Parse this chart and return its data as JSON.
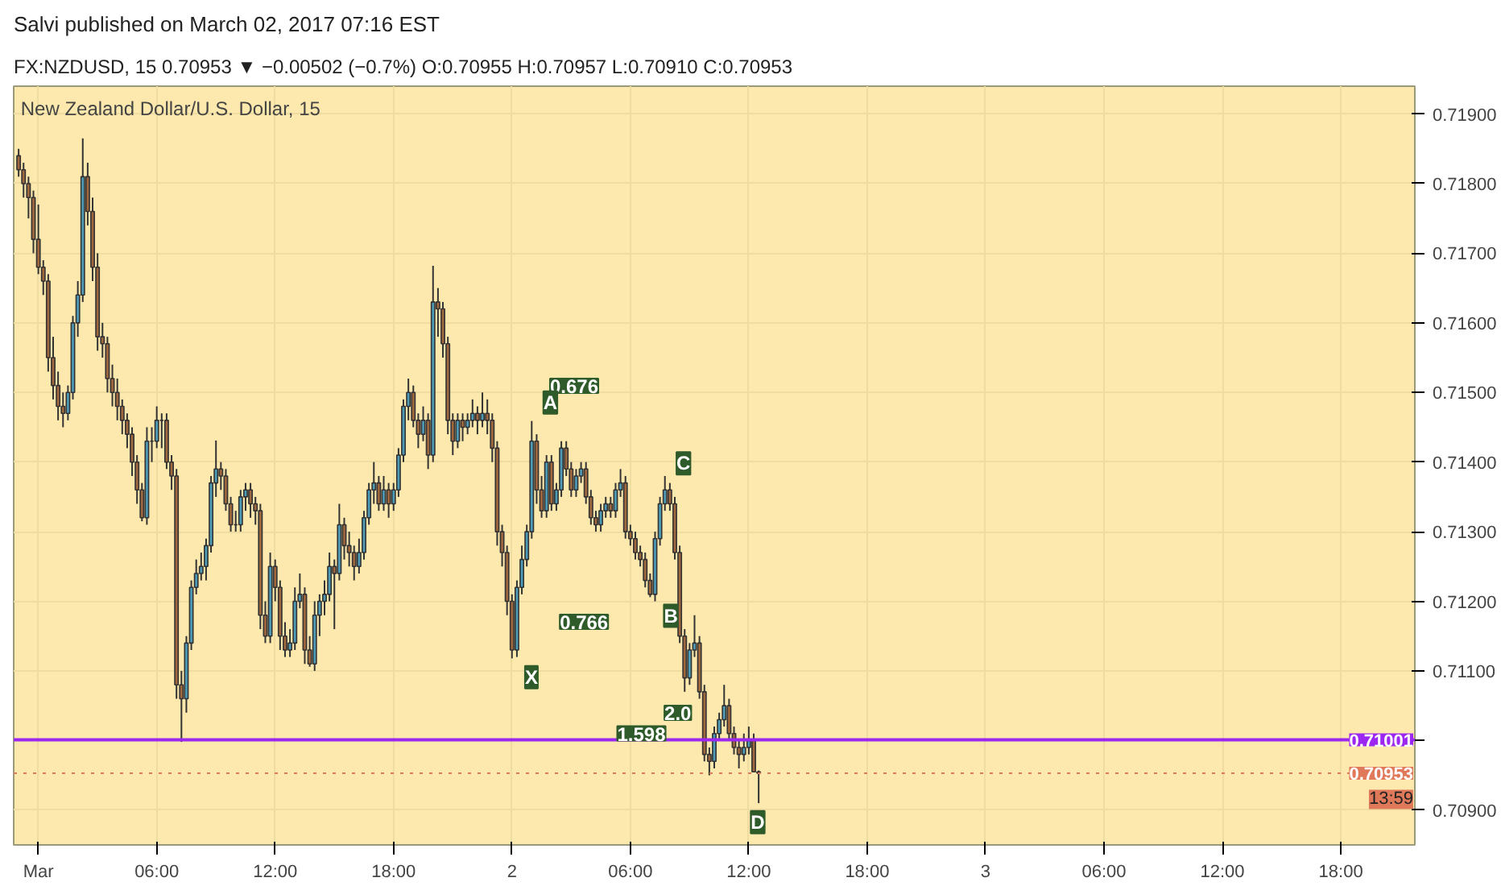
{
  "chart_data": {
    "type": "candlestick",
    "title": "Salvi published on March 02, 2017 07:16 EST",
    "subtitle": "FX:NZDUSD, 15 0.70953 ▼ −0.00502 (−0.7%) O:0.70955 H:0.70957 L:0.70910 C:0.70953",
    "annotations": [
      "New Zealand Dollar/U.S. Dollar, 15",
      "13:59",
      "0.676",
      "0.766",
      "1.598",
      "2.0",
      "X",
      "A",
      "B",
      "C",
      "D"
    ],
    "x": [
      "2017-02-28T23:00",
      "2017-02-28T23:15",
      "2017-02-28T23:30",
      "2017-02-28T23:45",
      "2017-03-01T00:00",
      "2017-03-01T00:15",
      "2017-03-01T00:30",
      "2017-03-01T00:45",
      "2017-03-01T01:00",
      "2017-03-01T01:15",
      "2017-03-01T01:30",
      "2017-03-01T01:45",
      "2017-03-01T02:00",
      "2017-03-01T02:15",
      "2017-03-01T02:30",
      "2017-03-01T02:45",
      "2017-03-01T03:00",
      "2017-03-01T03:15",
      "2017-03-01T03:30",
      "2017-03-01T03:45",
      "2017-03-01T04:00",
      "2017-03-01T04:15",
      "2017-03-01T04:30",
      "2017-03-01T04:45",
      "2017-03-01T05:00",
      "2017-03-01T05:15",
      "2017-03-01T05:30",
      "2017-03-01T05:45",
      "2017-03-01T06:00",
      "2017-03-01T06:15",
      "2017-03-01T06:30",
      "2017-03-01T06:45",
      "2017-03-01T07:00",
      "2017-03-01T07:15",
      "2017-03-01T07:30",
      "2017-03-01T07:45",
      "2017-03-01T08:00",
      "2017-03-01T08:15",
      "2017-03-01T08:30",
      "2017-03-01T08:45",
      "2017-03-01T09:00",
      "2017-03-01T09:15",
      "2017-03-01T09:30",
      "2017-03-01T09:45",
      "2017-03-01T10:00",
      "2017-03-01T10:15",
      "2017-03-01T10:30",
      "2017-03-01T10:45",
      "2017-03-01T11:00",
      "2017-03-01T11:15",
      "2017-03-01T11:30",
      "2017-03-01T11:45",
      "2017-03-01T12:00",
      "2017-03-01T12:15",
      "2017-03-01T12:30",
      "2017-03-01T12:45",
      "2017-03-01T13:00",
      "2017-03-01T13:15",
      "2017-03-01T13:30",
      "2017-03-01T13:45",
      "2017-03-01T14:00",
      "2017-03-01T14:15",
      "2017-03-01T14:30",
      "2017-03-01T14:45",
      "2017-03-01T15:00",
      "2017-03-01T15:15",
      "2017-03-01T15:30",
      "2017-03-01T15:45",
      "2017-03-01T16:00",
      "2017-03-01T16:15",
      "2017-03-01T16:30",
      "2017-03-01T16:45",
      "2017-03-01T17:00",
      "2017-03-01T17:15",
      "2017-03-01T17:30",
      "2017-03-01T17:45",
      "2017-03-01T18:00",
      "2017-03-01T18:15",
      "2017-03-01T18:30",
      "2017-03-01T18:45",
      "2017-03-01T19:00",
      "2017-03-01T19:15",
      "2017-03-01T19:30",
      "2017-03-01T19:45",
      "2017-03-01T20:00",
      "2017-03-01T20:15",
      "2017-03-01T20:30",
      "2017-03-01T20:45",
      "2017-03-01T21:00",
      "2017-03-01T21:15",
      "2017-03-01T21:30",
      "2017-03-01T21:45",
      "2017-03-01T22:00",
      "2017-03-01T22:15",
      "2017-03-01T22:30",
      "2017-03-01T22:45",
      "2017-03-01T23:00",
      "2017-03-01T23:15",
      "2017-03-01T23:30",
      "2017-03-01T23:45",
      "2017-03-02T00:00",
      "2017-03-02T00:15",
      "2017-03-02T00:30",
      "2017-03-02T00:45",
      "2017-03-02T01:00",
      "2017-03-02T01:15",
      "2017-03-02T01:30",
      "2017-03-02T01:45",
      "2017-03-02T02:00",
      "2017-03-02T02:15",
      "2017-03-02T02:30",
      "2017-03-02T02:45",
      "2017-03-02T03:00",
      "2017-03-02T03:15",
      "2017-03-02T03:30",
      "2017-03-02T03:45",
      "2017-03-02T04:00",
      "2017-03-02T04:15",
      "2017-03-02T04:30",
      "2017-03-02T04:45",
      "2017-03-02T05:00",
      "2017-03-02T05:15",
      "2017-03-02T05:30",
      "2017-03-02T05:45",
      "2017-03-02T06:00",
      "2017-03-02T06:15",
      "2017-03-02T06:30",
      "2017-03-02T06:45",
      "2017-03-02T07:00",
      "2017-03-02T07:15",
      "2017-03-02T07:30",
      "2017-03-02T07:45",
      "2017-03-02T08:00",
      "2017-03-02T08:15",
      "2017-03-02T08:30",
      "2017-03-02T08:45",
      "2017-03-02T09:00",
      "2017-03-02T09:15",
      "2017-03-02T09:30",
      "2017-03-02T09:45",
      "2017-03-02T10:00",
      "2017-03-02T10:15",
      "2017-03-02T10:30",
      "2017-03-02T10:45",
      "2017-03-02T11:00",
      "2017-03-02T11:15",
      "2017-03-02T11:30",
      "2017-03-02T11:45",
      "2017-03-02T12:00",
      "2017-03-02T12:15",
      "2017-03-02T12:30"
    ],
    "ohlc": [
      [
        0.7184,
        0.7185,
        0.7181,
        0.7182
      ],
      [
        0.7182,
        0.7183,
        0.7178,
        0.718
      ],
      [
        0.718,
        0.7181,
        0.7175,
        0.7178
      ],
      [
        0.7178,
        0.7179,
        0.717,
        0.7172
      ],
      [
        0.7172,
        0.7177,
        0.7167,
        0.7168
      ],
      [
        0.7168,
        0.7169,
        0.7164,
        0.7166
      ],
      [
        0.7166,
        0.7167,
        0.7153,
        0.7155
      ],
      [
        0.7155,
        0.7158,
        0.7149,
        0.7151
      ],
      [
        0.7151,
        0.7153,
        0.7146,
        0.7148
      ],
      [
        0.7148,
        0.715,
        0.7145,
        0.7147
      ],
      [
        0.7147,
        0.7151,
        0.7146,
        0.715
      ],
      [
        0.715,
        0.7161,
        0.7149,
        0.716
      ],
      [
        0.716,
        0.7166,
        0.7158,
        0.7164
      ],
      [
        0.7164,
        0.71865,
        0.7163,
        0.7181
      ],
      [
        0.7181,
        0.7183,
        0.7174,
        0.7176
      ],
      [
        0.7176,
        0.7178,
        0.7166,
        0.7168
      ],
      [
        0.7168,
        0.717,
        0.7156,
        0.7158
      ],
      [
        0.7158,
        0.716,
        0.7155,
        0.7157
      ],
      [
        0.7157,
        0.7158,
        0.715,
        0.7152
      ],
      [
        0.7152,
        0.7154,
        0.7148,
        0.715
      ],
      [
        0.715,
        0.7152,
        0.7146,
        0.7148
      ],
      [
        0.7148,
        0.7149,
        0.7144,
        0.7146
      ],
      [
        0.7146,
        0.7147,
        0.7142,
        0.7144
      ],
      [
        0.7144,
        0.7145,
        0.7138,
        0.714
      ],
      [
        0.714,
        0.7141,
        0.7134,
        0.7136
      ],
      [
        0.7136,
        0.7137,
        0.71315,
        0.7132
      ],
      [
        0.7132,
        0.7145,
        0.7131,
        0.7143
      ],
      [
        0.7143,
        0.7145,
        0.714,
        0.7143
      ],
      [
        0.7143,
        0.7148,
        0.7142,
        0.7146
      ],
      [
        0.7146,
        0.7147,
        0.7142,
        0.7146
      ],
      [
        0.7146,
        0.7147,
        0.7139,
        0.714
      ],
      [
        0.714,
        0.7141,
        0.7136,
        0.7138
      ],
      [
        0.7138,
        0.7139,
        0.7106,
        0.7108
      ],
      [
        0.7108,
        0.711,
        0.70998,
        0.7106
      ],
      [
        0.7106,
        0.7115,
        0.7104,
        0.7114
      ],
      [
        0.7114,
        0.7123,
        0.7113,
        0.7122
      ],
      [
        0.7122,
        0.7126,
        0.7121,
        0.7124
      ],
      [
        0.7124,
        0.7127,
        0.7123,
        0.7125
      ],
      [
        0.7125,
        0.7129,
        0.7123,
        0.7128
      ],
      [
        0.7128,
        0.7138,
        0.7127,
        0.7137
      ],
      [
        0.7137,
        0.71431,
        0.7135,
        0.7139
      ],
      [
        0.7139,
        0.714,
        0.7136,
        0.7138
      ],
      [
        0.7138,
        0.7139,
        0.7133,
        0.7134
      ],
      [
        0.7134,
        0.7135,
        0.713,
        0.7131
      ],
      [
        0.7131,
        0.7133,
        0.713,
        0.7131
      ],
      [
        0.7131,
        0.7136,
        0.713,
        0.7135
      ],
      [
        0.7135,
        0.7137,
        0.7133,
        0.7136
      ],
      [
        0.7136,
        0.7137,
        0.7132,
        0.7134
      ],
      [
        0.7134,
        0.7135,
        0.7131,
        0.7133
      ],
      [
        0.7133,
        0.7134,
        0.7116,
        0.7118
      ],
      [
        0.7118,
        0.712,
        0.7114,
        0.7115
      ],
      [
        0.7115,
        0.7127,
        0.7114,
        0.7125
      ],
      [
        0.7125,
        0.7126,
        0.712,
        0.7122
      ],
      [
        0.7122,
        0.7123,
        0.7113,
        0.7115
      ],
      [
        0.7115,
        0.7117,
        0.7112,
        0.7113
      ],
      [
        0.7113,
        0.7116,
        0.7112,
        0.7114
      ],
      [
        0.7114,
        0.7122,
        0.7113,
        0.712
      ],
      [
        0.712,
        0.7124,
        0.7119,
        0.7121
      ],
      [
        0.7121,
        0.7122,
        0.7111,
        0.7113
      ],
      [
        0.7113,
        0.7115,
        0.71106,
        0.7111
      ],
      [
        0.7111,
        0.712,
        0.711,
        0.7118
      ],
      [
        0.7118,
        0.7121,
        0.7115,
        0.712
      ],
      [
        0.712,
        0.7123,
        0.7118,
        0.7121
      ],
      [
        0.7121,
        0.7127,
        0.712,
        0.7125
      ],
      [
        0.7125,
        0.7126,
        0.7116,
        0.7124
      ],
      [
        0.7124,
        0.7134,
        0.7123,
        0.7131
      ],
      [
        0.7131,
        0.7132,
        0.7126,
        0.7128
      ],
      [
        0.7128,
        0.713,
        0.7125,
        0.7127
      ],
      [
        0.7127,
        0.7128,
        0.7123,
        0.7125
      ],
      [
        0.7125,
        0.7129,
        0.7124,
        0.7127
      ],
      [
        0.7127,
        0.7133,
        0.7126,
        0.7132
      ],
      [
        0.7132,
        0.7137,
        0.7131,
        0.7136
      ],
      [
        0.7136,
        0.714,
        0.7134,
        0.7137
      ],
      [
        0.7137,
        0.7138,
        0.7133,
        0.7134
      ],
      [
        0.7134,
        0.7138,
        0.7133,
        0.7136
      ],
      [
        0.7136,
        0.7137,
        0.7132,
        0.7134
      ],
      [
        0.7134,
        0.7137,
        0.7133,
        0.7136
      ],
      [
        0.7136,
        0.7142,
        0.7135,
        0.7141
      ],
      [
        0.7141,
        0.7149,
        0.714,
        0.7148
      ],
      [
        0.7148,
        0.7152,
        0.7146,
        0.715
      ],
      [
        0.715,
        0.7151,
        0.7145,
        0.7146
      ],
      [
        0.7146,
        0.7147,
        0.7142,
        0.7144
      ],
      [
        0.7144,
        0.7148,
        0.7143,
        0.7146
      ],
      [
        0.7146,
        0.7147,
        0.7139,
        0.7141
      ],
      [
        0.7141,
        0.71682,
        0.714,
        0.7163
      ],
      [
        0.7163,
        0.7165,
        0.7158,
        0.7162
      ],
      [
        0.7162,
        0.7163,
        0.7155,
        0.7157
      ],
      [
        0.7157,
        0.7158,
        0.7144,
        0.7146
      ],
      [
        0.7146,
        0.7147,
        0.7141,
        0.7143
      ],
      [
        0.7143,
        0.7147,
        0.7142,
        0.7146
      ],
      [
        0.7146,
        0.7147,
        0.7143,
        0.7145
      ],
      [
        0.7145,
        0.7147,
        0.7144,
        0.7146
      ],
      [
        0.7146,
        0.7149,
        0.7145,
        0.7147
      ],
      [
        0.7147,
        0.7148,
        0.7144,
        0.7146
      ],
      [
        0.7146,
        0.715,
        0.7145,
        0.7147
      ],
      [
        0.7147,
        0.7149,
        0.7144,
        0.7146
      ],
      [
        0.7146,
        0.7147,
        0.714,
        0.7142
      ],
      [
        0.7142,
        0.7143,
        0.7128,
        0.713
      ],
      [
        0.713,
        0.7131,
        0.7125,
        0.7127
      ],
      [
        0.7127,
        0.7128,
        0.7118,
        0.712
      ],
      [
        0.712,
        0.7121,
        0.71118,
        0.7113
      ],
      [
        0.7113,
        0.7123,
        0.7112,
        0.7122
      ],
      [
        0.7122,
        0.7128,
        0.7121,
        0.7126
      ],
      [
        0.7126,
        0.7131,
        0.7125,
        0.713
      ],
      [
        0.713,
        0.71459,
        0.7129,
        0.7143
      ],
      [
        0.7143,
        0.7144,
        0.7134,
        0.7136
      ],
      [
        0.7136,
        0.7138,
        0.7132,
        0.7133
      ],
      [
        0.7133,
        0.7141,
        0.7132,
        0.714
      ],
      [
        0.714,
        0.7141,
        0.7133,
        0.7134
      ],
      [
        0.7134,
        0.7137,
        0.7133,
        0.7136
      ],
      [
        0.7136,
        0.7143,
        0.7135,
        0.7142
      ],
      [
        0.7142,
        0.7143,
        0.7138,
        0.7139
      ],
      [
        0.7139,
        0.714,
        0.7135,
        0.7136
      ],
      [
        0.7136,
        0.7139,
        0.7135,
        0.7138
      ],
      [
        0.7138,
        0.714,
        0.7137,
        0.7139
      ],
      [
        0.7139,
        0.714,
        0.7134,
        0.7135
      ],
      [
        0.7135,
        0.7136,
        0.7131,
        0.7132
      ],
      [
        0.7132,
        0.7133,
        0.713,
        0.7131
      ],
      [
        0.7131,
        0.7134,
        0.713,
        0.7133
      ],
      [
        0.7133,
        0.7135,
        0.7132,
        0.7134
      ],
      [
        0.7134,
        0.7135,
        0.7132,
        0.7133
      ],
      [
        0.7133,
        0.7137,
        0.7132,
        0.7136
      ],
      [
        0.7136,
        0.7139,
        0.7135,
        0.7137
      ],
      [
        0.7137,
        0.7138,
        0.7129,
        0.713
      ],
      [
        0.713,
        0.7131,
        0.7128,
        0.7129
      ],
      [
        0.7129,
        0.713,
        0.7126,
        0.7127
      ],
      [
        0.7127,
        0.7128,
        0.7125,
        0.7126
      ],
      [
        0.7126,
        0.7127,
        0.7122,
        0.7123
      ],
      [
        0.7123,
        0.7124,
        0.71206,
        0.7121
      ],
      [
        0.7121,
        0.713,
        0.712,
        0.7129
      ],
      [
        0.7129,
        0.7135,
        0.7128,
        0.7134
      ],
      [
        0.7134,
        0.7138,
        0.7133,
        0.7136
      ],
      [
        0.7136,
        0.7137,
        0.7133,
        0.7134
      ],
      [
        0.7134,
        0.7135,
        0.7126,
        0.7127
      ],
      [
        0.7127,
        0.7128,
        0.7114,
        0.7115
      ],
      [
        0.7115,
        0.7116,
        0.7107,
        0.7109
      ],
      [
        0.7109,
        0.7114,
        0.7108,
        0.7113
      ],
      [
        0.7113,
        0.7118,
        0.7112,
        0.7114
      ],
      [
        0.7114,
        0.7115,
        0.7106,
        0.7107
      ],
      [
        0.7107,
        0.7108,
        0.7097,
        0.7098
      ],
      [
        0.7098,
        0.7099,
        0.7095,
        0.7097
      ],
      [
        0.7097,
        0.7102,
        0.7096,
        0.7101
      ],
      [
        0.7101,
        0.7104,
        0.71,
        0.7103
      ],
      [
        0.7103,
        0.7108,
        0.7102,
        0.7105
      ],
      [
        0.7105,
        0.7106,
        0.71,
        0.7101
      ],
      [
        0.7101,
        0.7102,
        0.7098,
        0.7099
      ],
      [
        0.7099,
        0.71,
        0.7096,
        0.7098
      ],
      [
        0.7098,
        0.7101,
        0.7097,
        0.7099
      ],
      [
        0.7099,
        0.7102,
        0.7098,
        0.71
      ],
      [
        0.71,
        0.7101,
        0.70955,
        0.70955
      ],
      [
        0.70955,
        0.70957,
        0.7091,
        0.70953
      ]
    ],
    "xlim": [
      "2017-02-28T22:45",
      "2017-03-03T21:45"
    ],
    "xticks": [
      {
        "value": "2017-03-01T00:00",
        "label": "Mar"
      },
      {
        "value": "2017-03-01T06:00",
        "label": "06:00"
      },
      {
        "value": "2017-03-01T12:00",
        "label": "12:00"
      },
      {
        "value": "2017-03-01T18:00",
        "label": "18:00"
      },
      {
        "value": "2017-03-02T00:00",
        "label": "2"
      },
      {
        "value": "2017-03-02T06:00",
        "label": "06:00"
      },
      {
        "value": "2017-03-02T12:00",
        "label": "12:00"
      },
      {
        "value": "2017-03-02T18:00",
        "label": "18:00"
      },
      {
        "value": "2017-03-03T00:00",
        "label": "3"
      },
      {
        "value": "2017-03-03T06:00",
        "label": "06:00"
      },
      {
        "value": "2017-03-03T12:00",
        "label": "12:00"
      },
      {
        "value": "2017-03-03T18:00",
        "label": "18:00"
      }
    ],
    "ylim": [
      0.7085,
      0.7194
    ],
    "yticks": [
      {
        "value": 0.709,
        "label": "0.70900"
      },
      {
        "value": 0.71,
        "label": null
      },
      {
        "value": 0.711,
        "label": "0.71100"
      },
      {
        "value": 0.712,
        "label": "0.71200"
      },
      {
        "value": 0.713,
        "label": "0.71300"
      },
      {
        "value": 0.714,
        "label": "0.71400"
      },
      {
        "value": 0.715,
        "label": "0.71500"
      },
      {
        "value": 0.716,
        "label": "0.71600"
      },
      {
        "value": 0.717,
        "label": "0.71700"
      },
      {
        "value": 0.718,
        "label": "0.71800"
      },
      {
        "value": 0.719,
        "label": "0.71900"
      }
    ],
    "ref_lines": [
      {
        "axis": "y",
        "value": 0.71001,
        "label": "0.71001",
        "color": "#9c27f0",
        "line_style": "solid"
      },
      {
        "axis": "y",
        "value": 0.70953,
        "label": "0.70953",
        "color": "#e0795a",
        "line_style": "dotted"
      }
    ],
    "grid": true
  }
}
